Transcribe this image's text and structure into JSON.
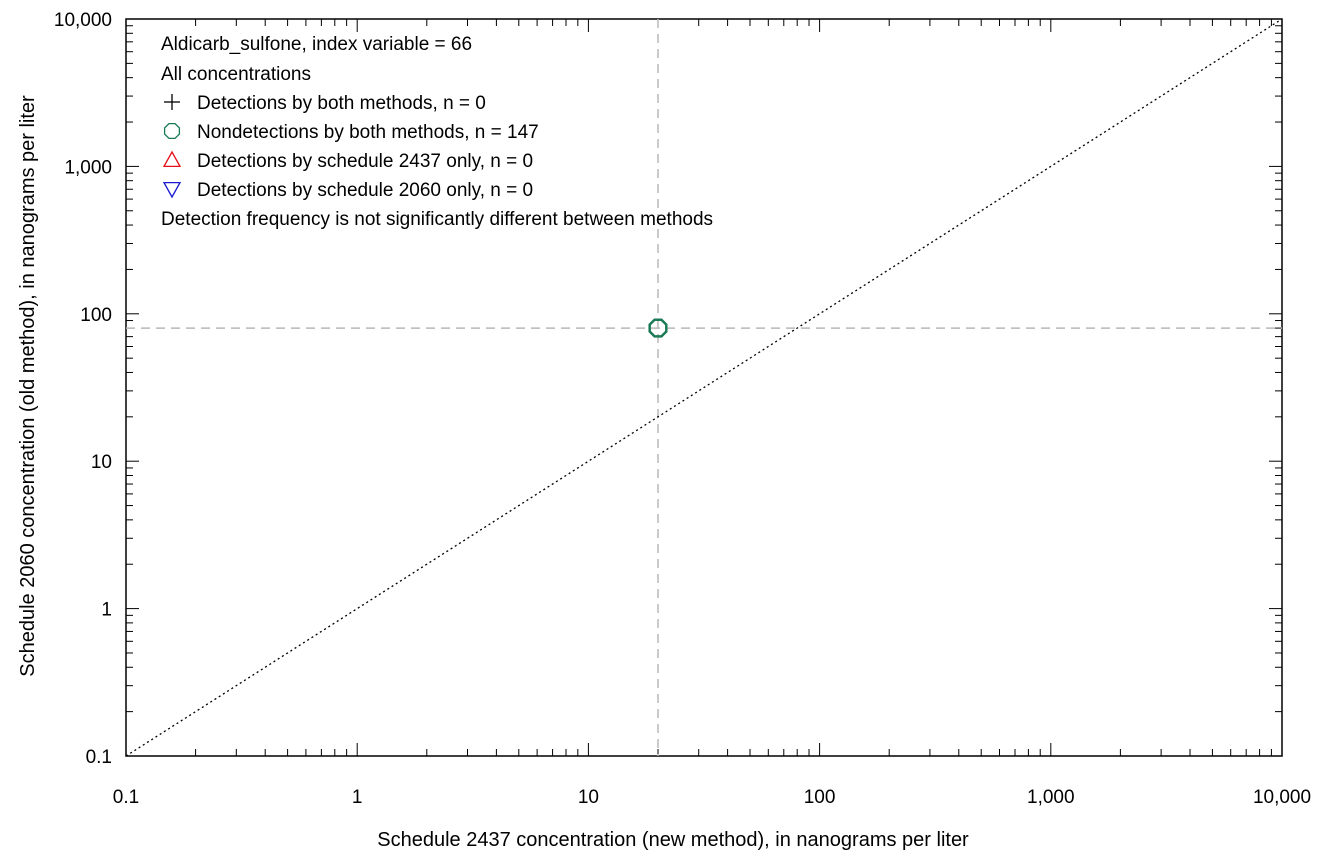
{
  "chart_data": {
    "type": "scatter",
    "title_lines": [
      "Aldicarb_sulfone, index variable = 66",
      "All concentrations"
    ],
    "xlabel": "Schedule 2437 concentration (new method), in nanograms per liter",
    "ylabel": "Schedule 2060 concentration (old method), in nanograms per liter",
    "x_scale": "log",
    "y_scale": "log",
    "xlim": [
      0.1,
      10000
    ],
    "ylim": [
      0.1,
      10000
    ],
    "x_ticks": [
      {
        "value": 0.1,
        "label": "0.1"
      },
      {
        "value": 1,
        "label": "1"
      },
      {
        "value": 10,
        "label": "10"
      },
      {
        "value": 100,
        "label": "100"
      },
      {
        "value": 1000,
        "label": "1,000"
      },
      {
        "value": 10000,
        "label": "10,000"
      }
    ],
    "y_ticks": [
      {
        "value": 0.1,
        "label": "0.1"
      },
      {
        "value": 1,
        "label": "1"
      },
      {
        "value": 10,
        "label": "10"
      },
      {
        "value": 100,
        "label": "100"
      },
      {
        "value": 1000,
        "label": "1,000"
      },
      {
        "value": 10000,
        "label": "10,000"
      }
    ],
    "reference_lines": {
      "one_to_one": true,
      "vertical_dashed_x": 20,
      "horizontal_dashed_y": 80
    },
    "legend": [
      {
        "symbol": "plus",
        "color": "#000000",
        "label": "Detections by both methods, n = 0"
      },
      {
        "symbol": "octagon",
        "color": "#1a7a55",
        "label": "Nondetections by both methods,  n = 147"
      },
      {
        "symbol": "triangle-up",
        "color": "#e8101a",
        "label": "Detections by schedule 2437 only, n = 0"
      },
      {
        "symbol": "triangle-down",
        "color": "#1a1ad0",
        "label": "Detections by schedule 2060 only,  n = 0"
      }
    ],
    "note": "Detection frequency is not significantly different between methods",
    "series": [
      {
        "name": "Nondetections by both methods,  n = 147",
        "symbol": "octagon",
        "color": "#1a7a55",
        "points": [
          {
            "x": 20,
            "y": 80
          }
        ]
      }
    ],
    "legend_placement": "top-left",
    "grid": false
  }
}
